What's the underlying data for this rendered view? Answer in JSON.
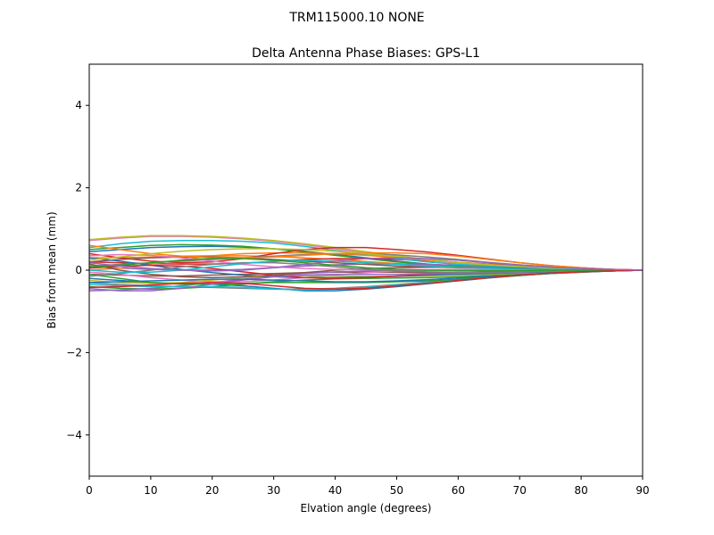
{
  "chart_data": {
    "type": "line",
    "suptitle": "TRM115000.10    NONE",
    "title": "Delta Antenna Phase Biases: GPS-L1",
    "xlabel": "Elvation angle (degrees)",
    "ylabel": "Bias from mean (mm)",
    "xlim": [
      0,
      90
    ],
    "ylim": [
      -5,
      5
    ],
    "x_ticks": [
      0,
      10,
      20,
      30,
      40,
      50,
      60,
      70,
      80,
      90
    ],
    "y_ticks": [
      -4,
      -2,
      0,
      2,
      4
    ],
    "grid": false,
    "legend": "none",
    "x": [
      0,
      5,
      10,
      15,
      20,
      25,
      30,
      35,
      40,
      45,
      50,
      55,
      60,
      65,
      70,
      75,
      80,
      85,
      90
    ],
    "series": [
      {
        "color": "#1f77b4",
        "values": [
          0.45,
          0.5,
          0.55,
          0.57,
          0.58,
          0.56,
          0.52,
          0.46,
          0.38,
          0.3,
          0.22,
          0.15,
          0.1,
          0.06,
          0.05,
          0.04,
          0.03,
          0.01,
          0.0
        ]
      },
      {
        "color": "#ff7f0e",
        "values": [
          0.3,
          0.3,
          0.32,
          0.34,
          0.35,
          0.35,
          0.33,
          0.3,
          0.26,
          0.21,
          0.16,
          0.12,
          0.09,
          0.07,
          0.05,
          0.03,
          0.02,
          0.01,
          0.0
        ]
      },
      {
        "color": "#2ca02c",
        "values": [
          0.5,
          0.55,
          0.6,
          0.62,
          0.61,
          0.58,
          0.52,
          0.44,
          0.36,
          0.28,
          0.2,
          0.14,
          0.1,
          0.07,
          0.05,
          0.04,
          0.03,
          0.01,
          0.0
        ]
      },
      {
        "color": "#d62728",
        "values": [
          0.2,
          0.18,
          0.16,
          0.15,
          0.15,
          0.17,
          0.21,
          0.26,
          0.28,
          0.28,
          0.26,
          0.23,
          0.19,
          0.15,
          0.11,
          0.07,
          0.04,
          0.02,
          0.0
        ]
      },
      {
        "color": "#9467bd",
        "values": [
          0.1,
          0.05,
          0.02,
          0.0,
          0.0,
          0.02,
          0.06,
          0.1,
          0.13,
          0.15,
          0.15,
          0.14,
          0.12,
          0.1,
          0.08,
          0.06,
          0.04,
          0.02,
          0.0
        ]
      },
      {
        "color": "#8c564b",
        "values": [
          -0.1,
          -0.12,
          -0.14,
          -0.14,
          -0.12,
          -0.1,
          -0.08,
          -0.06,
          -0.05,
          -0.05,
          -0.05,
          -0.06,
          -0.06,
          -0.06,
          -0.05,
          -0.04,
          -0.03,
          -0.01,
          0.0
        ]
      },
      {
        "color": "#e377c2",
        "values": [
          0.72,
          0.78,
          0.82,
          0.82,
          0.8,
          0.76,
          0.7,
          0.62,
          0.52,
          0.42,
          0.32,
          0.24,
          0.17,
          0.12,
          0.08,
          0.05,
          0.03,
          0.01,
          0.0
        ]
      },
      {
        "color": "#7f7f7f",
        "values": [
          -0.3,
          -0.35,
          -0.38,
          -0.4,
          -0.42,
          -0.44,
          -0.46,
          -0.46,
          -0.44,
          -0.4,
          -0.35,
          -0.29,
          -0.23,
          -0.17,
          -0.12,
          -0.07,
          -0.04,
          -0.02,
          0.0
        ]
      },
      {
        "color": "#bcbd22",
        "values": [
          0.74,
          0.8,
          0.84,
          0.84,
          0.82,
          0.78,
          0.72,
          0.64,
          0.55,
          0.45,
          0.35,
          0.26,
          0.18,
          0.12,
          0.08,
          0.05,
          0.03,
          0.01,
          0.0
        ]
      },
      {
        "color": "#17becf",
        "values": [
          0.55,
          0.64,
          0.7,
          0.72,
          0.72,
          0.7,
          0.66,
          0.58,
          0.48,
          0.38,
          0.28,
          0.2,
          0.14,
          0.1,
          0.07,
          0.05,
          0.03,
          0.01,
          0.0
        ]
      },
      {
        "color": "#1f77b4",
        "values": [
          -0.2,
          -0.25,
          -0.3,
          -0.32,
          -0.34,
          -0.38,
          -0.44,
          -0.5,
          -0.5,
          -0.46,
          -0.4,
          -0.33,
          -0.26,
          -0.19,
          -0.13,
          -0.08,
          -0.05,
          -0.02,
          0.0
        ]
      },
      {
        "color": "#ff7f0e",
        "values": [
          0.0,
          0.05,
          0.15,
          0.25,
          0.35,
          0.4,
          0.42,
          0.42,
          0.4,
          0.36,
          0.31,
          0.25,
          0.19,
          0.14,
          0.09,
          0.06,
          0.03,
          0.01,
          0.0
        ]
      },
      {
        "color": "#2ca02c",
        "values": [
          -0.4,
          -0.44,
          -0.46,
          -0.44,
          -0.4,
          -0.34,
          -0.28,
          -0.24,
          -0.21,
          -0.2,
          -0.19,
          -0.18,
          -0.16,
          -0.13,
          -0.1,
          -0.06,
          -0.04,
          -0.02,
          0.0
        ]
      },
      {
        "color": "#d62728",
        "values": [
          0.4,
          0.3,
          0.22,
          0.18,
          0.2,
          0.28,
          0.4,
          0.5,
          0.55,
          0.55,
          0.5,
          0.44,
          0.36,
          0.27,
          0.18,
          0.11,
          0.06,
          0.02,
          0.0
        ]
      },
      {
        "color": "#9467bd",
        "values": [
          -0.5,
          -0.48,
          -0.44,
          -0.38,
          -0.3,
          -0.22,
          -0.14,
          -0.08,
          -0.04,
          -0.02,
          -0.01,
          0.0,
          0.0,
          0.01,
          0.01,
          0.01,
          0.01,
          0.0,
          0.0
        ]
      },
      {
        "color": "#8c564b",
        "values": [
          0.2,
          0.26,
          0.3,
          0.32,
          0.32,
          0.3,
          0.26,
          0.22,
          0.18,
          0.14,
          0.1,
          0.08,
          0.06,
          0.05,
          0.04,
          0.03,
          0.02,
          0.01,
          0.0
        ]
      },
      {
        "color": "#e377c2",
        "values": [
          -0.05,
          -0.1,
          -0.18,
          -0.24,
          -0.28,
          -0.28,
          -0.24,
          -0.18,
          -0.12,
          -0.06,
          -0.02,
          0.0,
          0.02,
          0.02,
          0.02,
          0.01,
          0.01,
          0.0,
          0.0
        ]
      },
      {
        "color": "#7f7f7f",
        "values": [
          0.1,
          0.14,
          0.18,
          0.22,
          0.26,
          0.3,
          0.34,
          0.38,
          0.4,
          0.4,
          0.37,
          0.32,
          0.26,
          0.19,
          0.13,
          0.08,
          0.04,
          0.02,
          0.0
        ]
      },
      {
        "color": "#bcbd22",
        "values": [
          -0.25,
          -0.3,
          -0.32,
          -0.3,
          -0.24,
          -0.18,
          -0.14,
          -0.13,
          -0.14,
          -0.15,
          -0.15,
          -0.14,
          -0.12,
          -0.1,
          -0.07,
          -0.05,
          -0.03,
          -0.01,
          0.0
        ]
      },
      {
        "color": "#17becf",
        "values": [
          -0.35,
          -0.38,
          -0.4,
          -0.4,
          -0.4,
          -0.42,
          -0.46,
          -0.48,
          -0.46,
          -0.42,
          -0.36,
          -0.3,
          -0.24,
          -0.18,
          -0.12,
          -0.07,
          -0.04,
          -0.02,
          0.0
        ]
      },
      {
        "color": "#1f77b4",
        "values": [
          0.3,
          0.22,
          0.12,
          0.02,
          -0.06,
          -0.12,
          -0.16,
          -0.18,
          -0.18,
          -0.17,
          -0.15,
          -0.12,
          -0.1,
          -0.08,
          -0.06,
          -0.04,
          -0.02,
          -0.01,
          0.0
        ]
      },
      {
        "color": "#ff7f0e",
        "values": [
          0.6,
          0.5,
          0.4,
          0.34,
          0.3,
          0.3,
          0.32,
          0.36,
          0.4,
          0.42,
          0.42,
          0.4,
          0.34,
          0.26,
          0.18,
          0.11,
          0.06,
          0.02,
          0.0
        ]
      },
      {
        "color": "#2ca02c",
        "values": [
          -0.1,
          -0.2,
          -0.3,
          -0.34,
          -0.34,
          -0.32,
          -0.3,
          -0.3,
          -0.3,
          -0.3,
          -0.28,
          -0.26,
          -0.22,
          -0.18,
          -0.13,
          -0.08,
          -0.05,
          -0.02,
          0.0
        ]
      },
      {
        "color": "#d62728",
        "values": [
          0.05,
          0.1,
          0.12,
          0.1,
          0.04,
          -0.04,
          -0.12,
          -0.18,
          -0.2,
          -0.18,
          -0.14,
          -0.1,
          -0.06,
          -0.03,
          -0.01,
          0.0,
          0.0,
          0.0,
          0.0
        ]
      },
      {
        "color": "#9467bd",
        "values": [
          -0.45,
          -0.5,
          -0.5,
          -0.44,
          -0.34,
          -0.24,
          -0.16,
          -0.12,
          -0.1,
          -0.1,
          -0.1,
          -0.09,
          -0.08,
          -0.06,
          -0.05,
          -0.03,
          -0.02,
          -0.01,
          0.0
        ]
      },
      {
        "color": "#8c564b",
        "values": [
          0.15,
          0.0,
          -0.1,
          -0.16,
          -0.18,
          -0.16,
          -0.12,
          -0.06,
          0.0,
          0.04,
          0.06,
          0.07,
          0.07,
          0.06,
          0.05,
          0.04,
          0.02,
          0.01,
          0.0
        ]
      },
      {
        "color": "#e377c2",
        "values": [
          0.35,
          0.38,
          0.36,
          0.3,
          0.22,
          0.14,
          0.08,
          0.04,
          0.02,
          0.01,
          0.01,
          0.01,
          0.01,
          0.01,
          0.01,
          0.01,
          0.0,
          0.0,
          0.0
        ]
      },
      {
        "color": "#7f7f7f",
        "values": [
          -0.15,
          -0.08,
          0.0,
          0.08,
          0.14,
          0.18,
          0.18,
          0.14,
          0.08,
          0.02,
          -0.02,
          -0.04,
          -0.05,
          -0.05,
          -0.04,
          -0.03,
          -0.02,
          -0.01,
          0.0
        ]
      },
      {
        "color": "#bcbd22",
        "values": [
          0.25,
          0.32,
          0.4,
          0.46,
          0.5,
          0.52,
          0.52,
          0.5,
          0.46,
          0.4,
          0.33,
          0.26,
          0.19,
          0.13,
          0.09,
          0.05,
          0.03,
          0.01,
          0.0
        ]
      },
      {
        "color": "#17becf",
        "values": [
          0.0,
          -0.05,
          -0.05,
          0.0,
          0.08,
          0.16,
          0.22,
          0.24,
          0.22,
          0.18,
          0.14,
          0.1,
          0.07,
          0.05,
          0.03,
          0.02,
          0.01,
          0.0,
          0.0
        ]
      },
      {
        "color": "#1f77b4",
        "values": [
          -0.3,
          -0.28,
          -0.26,
          -0.24,
          -0.22,
          -0.22,
          -0.24,
          -0.26,
          -0.28,
          -0.28,
          -0.26,
          -0.23,
          -0.19,
          -0.15,
          -0.11,
          -0.07,
          -0.04,
          -0.02,
          0.0
        ]
      },
      {
        "color": "#2ca02c",
        "values": [
          0.08,
          0.12,
          0.18,
          0.24,
          0.28,
          0.28,
          0.24,
          0.18,
          0.12,
          0.06,
          0.02,
          0.0,
          -0.01,
          -0.01,
          -0.01,
          0.0,
          0.0,
          0.0,
          0.0
        ]
      },
      {
        "color": "#d62728",
        "values": [
          -0.42,
          -0.4,
          -0.36,
          -0.32,
          -0.3,
          -0.32,
          -0.38,
          -0.44,
          -0.46,
          -0.44,
          -0.38,
          -0.32,
          -0.25,
          -0.18,
          -0.12,
          -0.07,
          -0.04,
          -0.02,
          0.0
        ]
      },
      {
        "color": "#9467bd",
        "values": [
          0.18,
          0.1,
          0.04,
          0.0,
          -0.02,
          0.0,
          0.06,
          0.14,
          0.22,
          0.28,
          0.3,
          0.28,
          0.24,
          0.18,
          0.12,
          0.07,
          0.04,
          0.02,
          0.0
        ]
      }
    ]
  }
}
